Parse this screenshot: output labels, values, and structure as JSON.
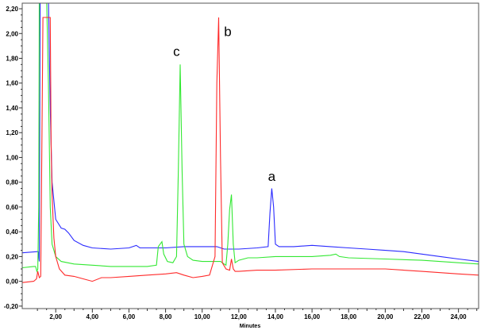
{
  "chart_data": {
    "type": "line",
    "title": "",
    "xlabel": "Minutes",
    "ylabel": "",
    "xlim": [
      0.17,
      25.1
    ],
    "ylim": [
      -0.22,
      2.245
    ],
    "grid": false,
    "x_ticks": [
      "2,00",
      "4,00",
      "6,00",
      "8,00",
      "10,00",
      "12,00",
      "14,00",
      "16,00",
      "18,00",
      "20,00",
      "22,00",
      "24,00"
    ],
    "x_tick_values": [
      2,
      4,
      6,
      8,
      10,
      12,
      14,
      16,
      18,
      20,
      22,
      24
    ],
    "y_ticks": [
      "-0,20",
      "0,00",
      "0,20",
      "0,40",
      "0,60",
      "0,80",
      "1,00",
      "1,20",
      "1,40",
      "1,60",
      "1,80",
      "2,00",
      "2,20"
    ],
    "y_tick_values": [
      -0.2,
      0,
      0.2,
      0.4,
      0.6,
      0.8,
      1.0,
      1.2,
      1.4,
      1.6,
      1.8,
      2.0,
      2.2
    ],
    "series": [
      {
        "name": "blue",
        "color": "#2b2bff",
        "x": [
          0.17,
          1.0,
          1.05,
          1.1,
          1.15,
          1.6,
          1.7,
          1.8,
          2.0,
          2.3,
          2.5,
          2.7,
          3.0,
          3.5,
          4.0,
          5.0,
          6.0,
          6.4,
          6.6,
          7.0,
          8.0,
          9.0,
          10.0,
          10.8,
          11.2,
          11.6,
          12.0,
          13.0,
          13.6,
          13.7,
          13.8,
          13.9,
          14.0,
          14.2,
          15.0,
          16.0,
          17.0,
          18.0,
          19.0,
          20.0,
          21.0,
          22.0,
          23.0,
          24.0,
          25.1
        ],
        "y": [
          0.23,
          0.24,
          0.24,
          0.16,
          2.3,
          2.3,
          1.4,
          0.8,
          0.5,
          0.43,
          0.42,
          0.39,
          0.33,
          0.29,
          0.27,
          0.26,
          0.27,
          0.29,
          0.27,
          0.27,
          0.27,
          0.28,
          0.28,
          0.28,
          0.26,
          0.26,
          0.26,
          0.27,
          0.28,
          0.55,
          0.75,
          0.6,
          0.3,
          0.28,
          0.28,
          0.29,
          0.28,
          0.27,
          0.26,
          0.25,
          0.24,
          0.22,
          0.2,
          0.18,
          0.16
        ]
      },
      {
        "name": "green",
        "color": "#33e833",
        "x": [
          0.17,
          0.8,
          0.9,
          0.97,
          1.02,
          1.07,
          1.1,
          1.5,
          1.6,
          1.7,
          1.8,
          2.0,
          2.3,
          3.0,
          4.0,
          5.0,
          6.0,
          7.0,
          7.5,
          7.6,
          7.8,
          7.9,
          8.1,
          8.4,
          8.6,
          8.7,
          8.8,
          8.9,
          9.0,
          9.2,
          9.5,
          10.0,
          10.5,
          11.0,
          11.2,
          11.3,
          11.4,
          11.5,
          11.6,
          11.7,
          11.8,
          12.0,
          12.5,
          13.0,
          14.0,
          15.0,
          16.0,
          17.0,
          17.3,
          17.5,
          18.0,
          20.0,
          22.0,
          24.0,
          25.1
        ],
        "y": [
          0.11,
          0.12,
          0.12,
          0.08,
          0.1,
          0.6,
          2.3,
          2.3,
          1.6,
          0.6,
          0.3,
          0.2,
          0.16,
          0.14,
          0.13,
          0.12,
          0.12,
          0.12,
          0.13,
          0.28,
          0.32,
          0.22,
          0.16,
          0.15,
          0.2,
          0.9,
          1.75,
          0.9,
          0.3,
          0.2,
          0.17,
          0.16,
          0.16,
          0.16,
          0.14,
          0.13,
          0.3,
          0.58,
          0.7,
          0.3,
          0.15,
          0.17,
          0.19,
          0.19,
          0.2,
          0.2,
          0.2,
          0.21,
          0.22,
          0.2,
          0.19,
          0.18,
          0.17,
          0.15,
          0.14
        ]
      },
      {
        "name": "red",
        "color": "#ff2a2a",
        "x": [
          0.17,
          0.8,
          0.95,
          1.02,
          1.1,
          1.18,
          1.25,
          1.3,
          1.7,
          1.75,
          1.8,
          1.9,
          2.0,
          2.2,
          2.5,
          3.0,
          3.5,
          4.0,
          4.5,
          5.0,
          6.0,
          7.0,
          8.0,
          8.6,
          9.0,
          9.5,
          10.0,
          10.4,
          10.7,
          10.8,
          10.9,
          11.0,
          11.1,
          11.3,
          11.5,
          11.6,
          11.7,
          11.8,
          12.0,
          13.0,
          14.0,
          16.0,
          18.0,
          20.0,
          22.0,
          24.0,
          25.1
        ],
        "y": [
          -0.01,
          0.0,
          0.02,
          0.08,
          0.03,
          0.04,
          1.2,
          2.13,
          2.13,
          1.1,
          0.7,
          0.35,
          0.2,
          0.1,
          0.05,
          0.04,
          0.02,
          0.0,
          0.03,
          0.03,
          0.04,
          0.05,
          0.06,
          0.07,
          0.05,
          0.03,
          0.04,
          0.05,
          0.2,
          1.6,
          2.13,
          1.0,
          0.15,
          0.1,
          0.09,
          0.18,
          0.1,
          0.08,
          0.08,
          0.09,
          0.09,
          0.1,
          0.1,
          0.1,
          0.08,
          0.06,
          0.05
        ]
      }
    ],
    "annotations": [
      {
        "text": "c",
        "x": 8.6,
        "y": 1.82
      },
      {
        "text": "b",
        "x": 11.4,
        "y": 1.98
      },
      {
        "text": "a",
        "x": 13.8,
        "y": 0.81
      }
    ]
  }
}
